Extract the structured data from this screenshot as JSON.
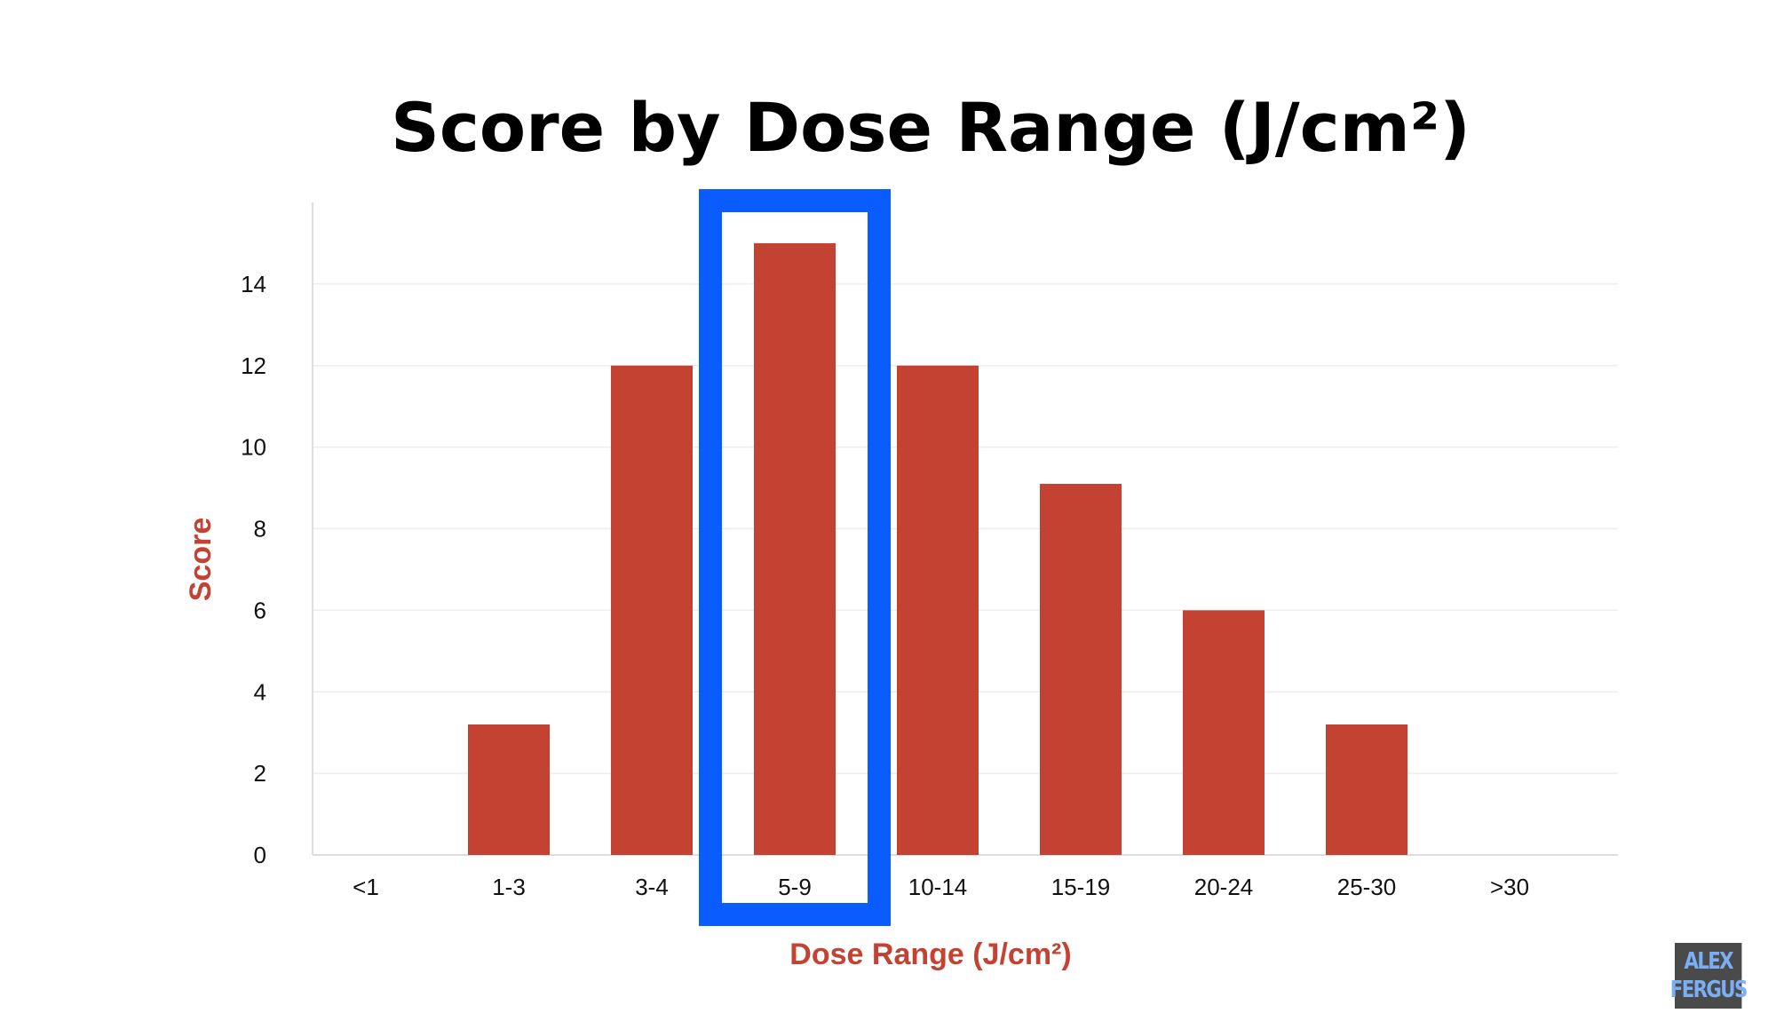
{
  "chart_data": {
    "type": "bar",
    "title": "Score by Dose Range (J/cm²)",
    "xlabel": "Dose Range (J/cm²)",
    "ylabel": "Score",
    "categories": [
      "<1",
      "1-3",
      "3-4",
      "5-9",
      "10-14",
      "15-19",
      "20-24",
      "25-30",
      ">30"
    ],
    "values": [
      0,
      3.2,
      12,
      15,
      12,
      9.1,
      6,
      3.2,
      0
    ],
    "ylim": [
      0,
      16
    ],
    "yticks": [
      0,
      2,
      4,
      6,
      8,
      10,
      12,
      14
    ],
    "grid": true,
    "highlight_category": "5-9",
    "colors": {
      "bar": "#c44232",
      "axis_title": "#c44232",
      "highlight": "#0a5cff",
      "grid": "#eeeeee"
    }
  },
  "watermark": {
    "line1": "ALEX",
    "line2": "FERGUS",
    "background": "#4a4a4a",
    "text_color": "#7aaef5"
  }
}
